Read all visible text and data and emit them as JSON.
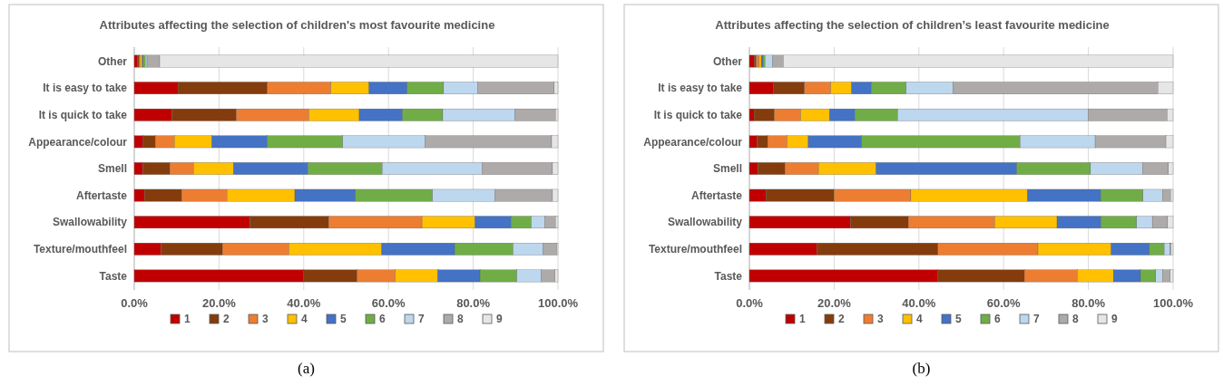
{
  "chart_data": [
    {
      "type": "bar",
      "orientation": "horizontal",
      "stacked": true,
      "title": "Attributes affecting the selection of children's most favourite medicine",
      "categories": [
        "Other",
        "It is easy to take",
        "It is quick to take",
        "Appearance/colour",
        "Smell",
        "Aftertaste",
        "Swallowability",
        "Texture/mouthfeel",
        "Taste"
      ],
      "series": [
        {
          "name": "1",
          "color": "#c00000",
          "values": [
            0.7,
            10.3,
            8.9,
            2.1,
            2.0,
            2.4,
            27.3,
            6.3,
            40.0
          ]
        },
        {
          "name": "2",
          "color": "#843c0c",
          "values": [
            0.4,
            21.1,
            15.2,
            2.9,
            6.4,
            8.8,
            18.6,
            14.5,
            12.6
          ]
        },
        {
          "name": "3",
          "color": "#ed7d31",
          "values": [
            0.3,
            15.0,
            17.1,
            4.5,
            5.6,
            10.7,
            22.0,
            15.7,
            9.0
          ]
        },
        {
          "name": "4",
          "color": "#ffc000",
          "values": [
            0.5,
            9.0,
            11.9,
            8.8,
            9.4,
            16.0,
            12.5,
            21.9,
            10.0
          ]
        },
        {
          "name": "5",
          "color": "#4472c4",
          "values": [
            0.2,
            9.0,
            10.2,
            13.1,
            17.6,
            14.3,
            8.5,
            17.2,
            10.0
          ]
        },
        {
          "name": "6",
          "color": "#70ad47",
          "values": [
            0.5,
            8.6,
            9.5,
            17.8,
            17.5,
            18.2,
            4.8,
            13.8,
            8.7
          ]
        },
        {
          "name": "7",
          "color": "#bdd7ee",
          "values": [
            0.4,
            8.1,
            17.1,
            19.4,
            23.6,
            14.7,
            3.2,
            7.1,
            5.7
          ]
        },
        {
          "name": "8",
          "color": "#aeaaaa",
          "values": [
            3.0,
            18.0,
            9.5,
            29.9,
            16.6,
            13.6,
            2.5,
            3.2,
            3.3
          ]
        },
        {
          "name": "9",
          "color": "#e7e6e6",
          "values": [
            94.0,
            0.9,
            0.6,
            1.5,
            1.3,
            1.3,
            0.6,
            0.3,
            0.7
          ]
        }
      ],
      "xlim": [
        0,
        100
      ],
      "xticks": [
        {
          "value": 0,
          "label": "0.0%"
        },
        {
          "value": 20,
          "label": "20.0%"
        },
        {
          "value": 40,
          "label": "40.0%"
        },
        {
          "value": 60,
          "label": "60.0%"
        },
        {
          "value": 80,
          "label": "80.0%"
        },
        {
          "value": 100,
          "label": "100.0%"
        }
      ],
      "grid": "x",
      "legend": "bottom",
      "annotations": [
        "(a)"
      ]
    },
    {
      "type": "bar",
      "orientation": "horizontal",
      "stacked": true,
      "title": "Attributes affecting the selection of children’s least favourite medicine",
      "categories": [
        "Other",
        "It is easy to take",
        "It is quick to take",
        "Appearance/colour",
        "Smell",
        "Aftertaste",
        "Swallowability",
        "Texture/mouthfeel",
        "Taste"
      ],
      "series": [
        {
          "name": "1",
          "color": "#c00000",
          "values": [
            1.2,
            5.6,
            1.1,
            1.8,
            2.0,
            3.9,
            23.9,
            16.0,
            44.5
          ]
        },
        {
          "name": "2",
          "color": "#843c0c",
          "values": [
            0.4,
            7.4,
            4.8,
            2.5,
            6.4,
            16.1,
            13.6,
            28.5,
            20.4
          ]
        },
        {
          "name": "3",
          "color": "#ed7d31",
          "values": [
            0.7,
            6.2,
            6.2,
            4.6,
            7.9,
            18.1,
            20.4,
            23.6,
            12.5
          ]
        },
        {
          "name": "4",
          "color": "#ffc000",
          "values": [
            0.5,
            4.9,
            6.8,
            5.0,
            13.6,
            27.5,
            14.7,
            17.3,
            8.5
          ]
        },
        {
          "name": "5",
          "color": "#4472c4",
          "values": [
            0.4,
            4.7,
            6.0,
            12.6,
            33.2,
            17.3,
            10.4,
            9.0,
            6.4
          ]
        },
        {
          "name": "6",
          "color": "#70ad47",
          "values": [
            0.5,
            8.2,
            10.1,
            37.4,
            17.4,
            10.0,
            8.4,
            3.5,
            3.6
          ]
        },
        {
          "name": "7",
          "color": "#bdd7ee",
          "values": [
            1.8,
            11.0,
            45.0,
            17.7,
            12.3,
            4.6,
            3.7,
            1.4,
            1.6
          ]
        },
        {
          "name": "8",
          "color": "#aeaaaa",
          "values": [
            2.5,
            48.4,
            18.6,
            16.7,
            6.1,
            1.9,
            3.6,
            0.2,
            1.8
          ]
        },
        {
          "name": "9",
          "color": "#e7e6e6",
          "values": [
            92.0,
            3.6,
            1.4,
            1.7,
            1.1,
            0.6,
            1.3,
            0.5,
            0.7
          ]
        }
      ],
      "xlim": [
        0,
        100
      ],
      "xticks": [
        {
          "value": 0,
          "label": "0.0%"
        },
        {
          "value": 20,
          "label": "20.0%"
        },
        {
          "value": 40,
          "label": "40.0%"
        },
        {
          "value": 60,
          "label": "60.0%"
        },
        {
          "value": 80,
          "label": "80.0%"
        },
        {
          "value": 100,
          "label": "100.0%"
        }
      ],
      "grid": "x",
      "legend": "bottom",
      "annotations": [
        "(b)"
      ]
    }
  ]
}
